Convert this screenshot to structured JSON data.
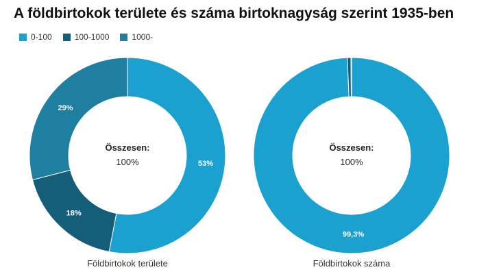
{
  "title": "A földbirtokok területe és száma birtoknagyság szerint 1935-ben",
  "legend": [
    {
      "label": "0-100",
      "color": "#1ba1cf"
    },
    {
      "label": "100-1000",
      "color": "#155e7a"
    },
    {
      "label": "1000-",
      "color": "#1f7fa1"
    }
  ],
  "chart_data": [
    {
      "type": "pie",
      "title": "Földbirtokok területe",
      "center_title": "Összesen:",
      "center_value": "100%",
      "legend_position": "top-left",
      "slices": [
        {
          "category": "0-100",
          "value": 53,
          "label": "53%"
        },
        {
          "category": "100-1000",
          "value": 18,
          "label": "18%"
        },
        {
          "category": "1000-",
          "value": 29,
          "label": "29%"
        }
      ]
    },
    {
      "type": "pie",
      "title": "Földbirtokok száma",
      "center_title": "Összesen:",
      "center_value": "100%",
      "legend_position": "top-left",
      "slices": [
        {
          "category": "0-100",
          "value": 99.3,
          "label": "99,3%"
        },
        {
          "category": "100-1000",
          "value": 0.6,
          "label": ""
        },
        {
          "category": "1000-",
          "value": 0.1,
          "label": ""
        }
      ]
    }
  ]
}
